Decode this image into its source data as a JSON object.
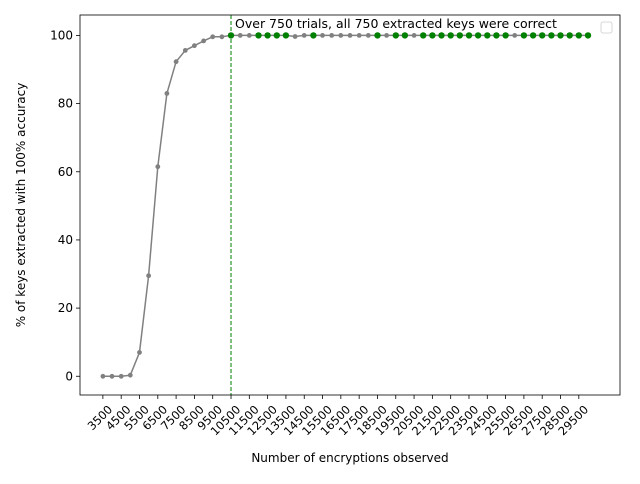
{
  "chart_data": {
    "type": "line",
    "title": "",
    "xlabel": "Number of encryptions observed",
    "ylabel": "% of keys extracted with 100% accuracy",
    "annotation": "Over 750 trials, all 750 extracted keys were correct",
    "x_tick_labels": [
      "3500",
      "4500",
      "5500",
      "6500",
      "7500",
      "8500",
      "9500",
      "10500",
      "11500",
      "12500",
      "13500",
      "14500",
      "15500",
      "16500",
      "17500",
      "18500",
      "19500",
      "20500",
      "21500",
      "22500",
      "23500",
      "24500",
      "25500",
      "26500",
      "27500",
      "28500",
      "29500"
    ],
    "y_ticks": [
      0,
      20,
      40,
      60,
      80,
      100
    ],
    "xlim": [
      2250,
      31750
    ],
    "ylim": [
      -5.5,
      106
    ],
    "threshold_x": 10500,
    "legend_placement": "top-right",
    "grid": false,
    "colors": {
      "line": "#808080",
      "points": "#808080",
      "highlight_points": "#008000",
      "threshold": "#008000"
    },
    "x": [
      3500,
      4000,
      4500,
      5000,
      5500,
      6000,
      6500,
      7000,
      7500,
      8000,
      8500,
      9000,
      9500,
      10000,
      10500,
      11000,
      11500,
      12000,
      12500,
      13000,
      13500,
      14000,
      14500,
      15000,
      15500,
      16000,
      16500,
      17000,
      17500,
      18000,
      18500,
      19000,
      19500,
      20000,
      20500,
      21000,
      21500,
      22000,
      22500,
      23000,
      23500,
      24000,
      24500,
      25000,
      25500,
      26000,
      26500,
      27000,
      27500,
      28000,
      28500,
      29000,
      29500,
      30000
    ],
    "y": [
      0,
      0,
      0,
      0.3,
      7,
      29.5,
      61.5,
      83,
      92.3,
      95.6,
      97,
      98.4,
      99.6,
      99.6,
      100,
      100,
      100,
      100,
      100,
      100,
      100,
      99.7,
      100,
      100,
      100,
      100,
      100,
      100,
      100,
      100,
      100,
      100,
      100,
      100,
      100,
      100,
      100,
      100,
      100,
      100,
      100,
      100,
      100,
      100,
      100,
      100,
      100,
      100,
      100,
      100,
      100,
      100,
      100,
      100
    ],
    "highlight_x": [
      10500,
      12000,
      12500,
      13000,
      13500,
      15000,
      18500,
      19500,
      20000,
      21000,
      21500,
      22000,
      22500,
      23000,
      23500,
      24000,
      24500,
      25000,
      25500,
      26500,
      27000,
      27500,
      28000,
      28500,
      29000,
      29500,
      30000
    ]
  }
}
